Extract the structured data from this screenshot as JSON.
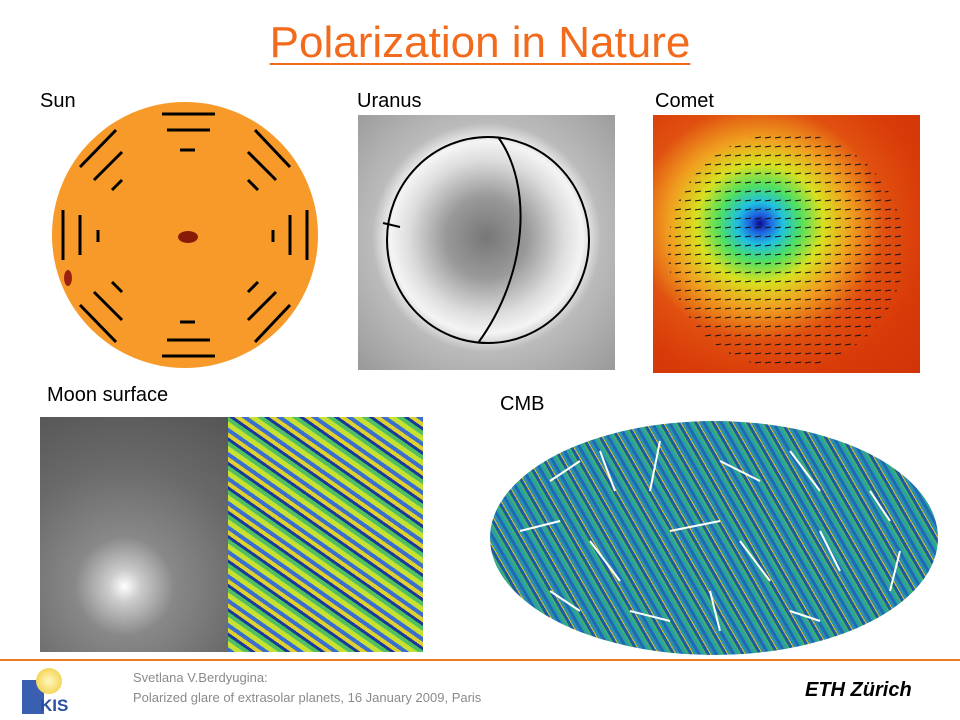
{
  "title": "Polarization in Nature",
  "panels": {
    "sun": "Sun",
    "uranus": "Uranus",
    "comet": "Comet",
    "moon": "Moon surface",
    "cmb": "CMB"
  },
  "footer": {
    "author": "Svetlana V.Berdyugina:",
    "talk": "Polarized glare of extrasolar planets, 16 January 2009, Paris",
    "kis_logo": "KIS",
    "eth_logo": "ETH Zürich"
  },
  "colors": {
    "accent": "#f26a1b",
    "sun": "#f79a2a"
  }
}
